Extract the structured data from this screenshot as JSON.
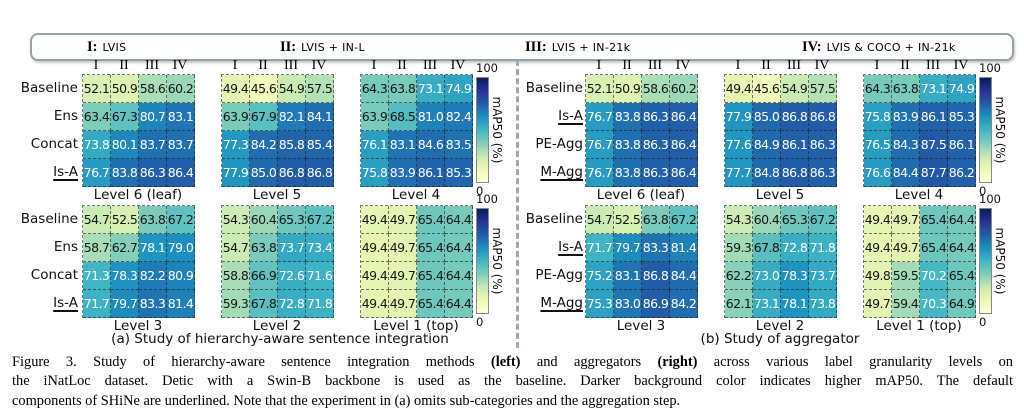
{
  "header": {
    "datasets": [
      {
        "numeral": "I:",
        "name": "LVIS"
      },
      {
        "numeral": "II:",
        "name": "LVIS + IN-L"
      },
      {
        "numeral": "III:",
        "name": "LVIS + IN-21k"
      },
      {
        "numeral": "IV:",
        "name": "LVIS & COCO + IN-21k"
      }
    ]
  },
  "chart_data": {
    "type": "heatmap",
    "colormap": "YlGnBu",
    "colormap_stops": [
      "#ffffd9",
      "#edf8b1",
      "#c7e9b4",
      "#7fcdbb",
      "#41b6c4",
      "#1d91c0",
      "#225ea8",
      "#253494",
      "#081d58"
    ],
    "color_scale": {
      "vmin": 40,
      "vmax": 102
    },
    "col_headers": [
      "I",
      "II",
      "III",
      "IV"
    ],
    "colorbar": {
      "max": "100",
      "min": "0",
      "label": "mAP50 (%)"
    },
    "panel_a": {
      "caption": "(a) Study of hierarchy-aware sentence integration",
      "row_labels": [
        {
          "text": "Baseline",
          "underline": false
        },
        {
          "text": "Ens",
          "underline": false
        },
        {
          "text": "Concat",
          "underline": false
        },
        {
          "text": "Is-A",
          "underline": true
        }
      ],
      "heatmaps": [
        {
          "title": "Level 6 (leaf)",
          "rows": [
            [
              52.1,
              50.9,
              58.6,
              60.2
            ],
            [
              63.4,
              67.3,
              80.7,
              83.1
            ],
            [
              73.8,
              80.1,
              83.7,
              83.7
            ],
            [
              76.7,
              83.8,
              86.3,
              86.4
            ]
          ]
        },
        {
          "title": "Level 5",
          "rows": [
            [
              49.4,
              45.6,
              54.9,
              57.5
            ],
            [
              63.9,
              67.9,
              82.1,
              84.1
            ],
            [
              77.3,
              84.2,
              85.8,
              85.4
            ],
            [
              77.9,
              85.0,
              86.8,
              86.8
            ]
          ]
        },
        {
          "title": "Level 4",
          "rows": [
            [
              64.3,
              63.8,
              73.1,
              74.9
            ],
            [
              63.9,
              68.5,
              81.0,
              82.4
            ],
            [
              76.1,
              83.1,
              84.6,
              83.5
            ],
            [
              75.8,
              83.9,
              86.1,
              85.3
            ]
          ]
        },
        {
          "title": "Level 3",
          "rows": [
            [
              54.7,
              52.5,
              63.8,
              67.2
            ],
            [
              58.7,
              62.7,
              78.1,
              79.0
            ],
            [
              71.3,
              78.3,
              82.2,
              80.9
            ],
            [
              71.7,
              79.7,
              83.3,
              81.4
            ]
          ]
        },
        {
          "title": "Level 2",
          "rows": [
            [
              54.3,
              60.4,
              65.3,
              67.2
            ],
            [
              54.7,
              63.8,
              73.7,
              73.4
            ],
            [
              58.8,
              66.9,
              72.6,
              71.6
            ],
            [
              59.3,
              67.8,
              72.8,
              71.8
            ]
          ]
        },
        {
          "title": "Level 1 (top)",
          "rows": [
            [
              49.4,
              49.7,
              65.4,
              64.4
            ],
            [
              49.4,
              49.7,
              65.4,
              64.4
            ],
            [
              49.4,
              49.7,
              65.4,
              64.4
            ],
            [
              49.4,
              49.7,
              65.4,
              64.4
            ]
          ]
        }
      ]
    },
    "panel_b": {
      "caption": "(b) Study of aggregator",
      "row_labels": [
        {
          "text": "Baseline",
          "underline": false
        },
        {
          "text": "Is-A",
          "underline": true
        },
        {
          "text": "PE-Agg",
          "underline": false
        },
        {
          "text": "M-Agg",
          "underline": true
        }
      ],
      "heatmaps": [
        {
          "title": "Level 6 (leaf)",
          "rows": [
            [
              52.1,
              50.9,
              58.6,
              60.2
            ],
            [
              76.7,
              83.8,
              86.3,
              86.4
            ],
            [
              76.7,
              83.8,
              86.3,
              86.4
            ],
            [
              76.7,
              83.8,
              86.3,
              86.4
            ]
          ]
        },
        {
          "title": "Level 5",
          "rows": [
            [
              49.4,
              45.6,
              54.9,
              57.5
            ],
            [
              77.9,
              85.0,
              86.8,
              86.8
            ],
            [
              77.6,
              84.9,
              86.1,
              86.3
            ],
            [
              77.7,
              84.8,
              86.8,
              86.3
            ]
          ]
        },
        {
          "title": "Level 4",
          "rows": [
            [
              64.3,
              63.8,
              73.1,
              74.9
            ],
            [
              75.8,
              83.9,
              86.1,
              85.3
            ],
            [
              76.5,
              84.3,
              87.5,
              86.1
            ],
            [
              76.6,
              84.4,
              87.7,
              86.2
            ]
          ]
        },
        {
          "title": "Level 3",
          "rows": [
            [
              54.7,
              52.5,
              63.8,
              67.2
            ],
            [
              71.7,
              79.7,
              83.3,
              81.4
            ],
            [
              75.2,
              83.1,
              86.8,
              84.4
            ],
            [
              75.3,
              83.0,
              86.9,
              84.2
            ]
          ]
        },
        {
          "title": "Level 2",
          "rows": [
            [
              54.3,
              60.4,
              65.3,
              67.2
            ],
            [
              59.3,
              67.8,
              72.8,
              71.8
            ],
            [
              62.2,
              73.0,
              78.3,
              73.7
            ],
            [
              62.1,
              73.1,
              78.1,
              73.8
            ]
          ]
        },
        {
          "title": "Level 1 (top)",
          "rows": [
            [
              49.4,
              49.7,
              65.4,
              64.4
            ],
            [
              49.4,
              49.7,
              65.4,
              64.4
            ],
            [
              49.8,
              59.5,
              70.2,
              65.4
            ],
            [
              49.7,
              59.4,
              70.3,
              64.9
            ]
          ]
        }
      ]
    }
  },
  "figure_caption": {
    "lines": [
      {
        "segments": [
          {
            "t": "Figure 3.  Study of hierarchy-aware sentence integration methods "
          },
          {
            "t": "(left)",
            "b": true
          },
          {
            "t": " and aggregators "
          },
          {
            "t": "(right)",
            "b": true
          },
          {
            "t": " across various label granularity levels on"
          }
        ]
      },
      {
        "segments": [
          {
            "t": "the iNatLoc dataset. Detic with a Swin-B backbone is used as the baseline. Darker background color indicates higher mAP50. The default"
          }
        ]
      },
      {
        "segments": [
          {
            "t": "components of SHiNe are underlined. Note that the experiment in (a) omits sub-categories and the aggregation step."
          }
        ]
      }
    ]
  }
}
